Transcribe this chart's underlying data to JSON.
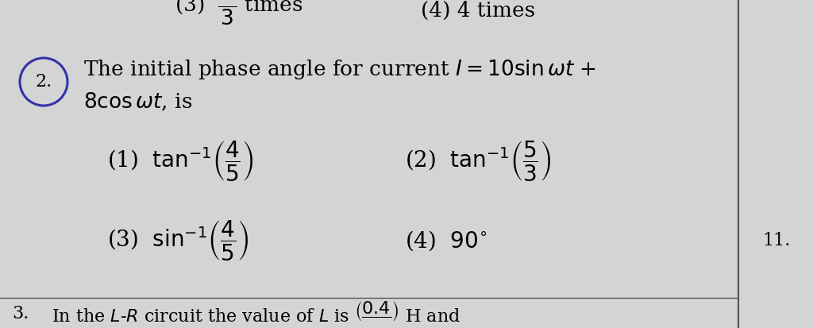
{
  "bg_color": "#d4d4d4",
  "text_color": "#111111",
  "circle_color": "#3333aa",
  "line_color": "#555555",
  "q_num": "2.",
  "q_line1": "The initial phase angle for current $I = 10\\sin\\omega t$ +",
  "q_line2": "$8\\cos\\omega t$, is",
  "top_left": "(3)  $\\dfrac{-}{3}$ times",
  "top_right": "(4) 4 times",
  "opt1_label": "(1)",
  "opt1_math": "$\\tan^{-1}\\!\\left(\\dfrac{4}{5}\\right)$",
  "opt2_label": "(2)",
  "opt2_math": "$\\tan^{-1}\\!\\left(\\dfrac{5}{3}\\right)$",
  "opt3_label": "(3)",
  "opt3_math": "$\\sin^{-1}\\!\\left(\\dfrac{4}{5}\\right)$",
  "opt4_label": "(4)",
  "opt4_math": "$90^{\\circ}$",
  "right_num": "11.",
  "footer_num": "3.",
  "footer_text": "In the $L$-$R$ circuit the value of $L$ is $\\left(\\dfrac{0.4}{\\quad}\\right)$ H and"
}
